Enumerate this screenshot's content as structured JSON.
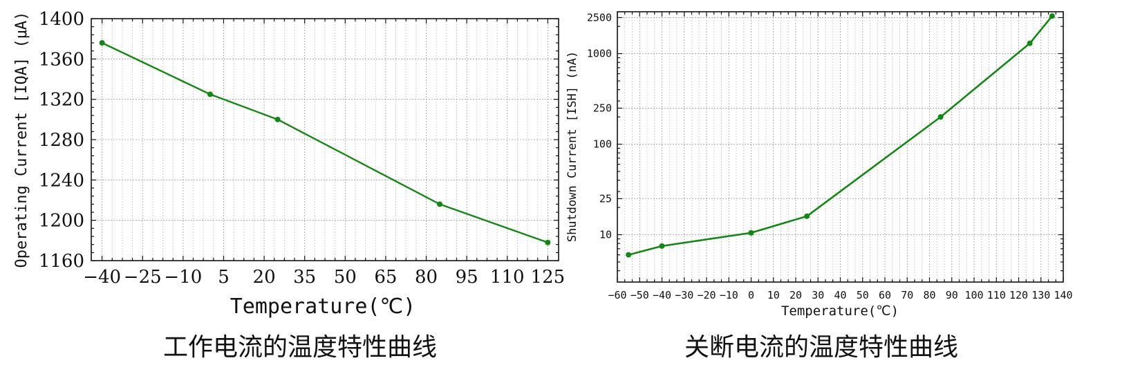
{
  "chart_data": [
    {
      "type": "line",
      "caption": "工作电流的温度特性曲线",
      "xlabel": "Temperature(℃)",
      "ylabel": "Operating Current [IQA] (μA)",
      "xlim": [
        -44,
        129
      ],
      "ylim": [
        1160,
        1400
      ],
      "x_ticks": [
        -40,
        -25,
        -10,
        5,
        20,
        35,
        50,
        65,
        80,
        95,
        110,
        125
      ],
      "y_ticks": [
        1160,
        1200,
        1240,
        1280,
        1320,
        1360,
        1400
      ],
      "grid": true,
      "color": "#118811",
      "series": [
        {
          "x": [
            -40,
            0,
            25,
            85,
            125
          ],
          "y": [
            1376,
            1325,
            1300,
            1216,
            1178
          ]
        }
      ]
    },
    {
      "type": "line",
      "caption": "关断电流的温度特性曲线",
      "xlabel": "Temperature(℃)",
      "ylabel": "Shutdown Current [ISH] (nA)",
      "y_scale": "log",
      "xlim": [
        -60,
        140
      ],
      "ylim": [
        3,
        2900
      ],
      "x_ticks": [
        -60,
        -50,
        -40,
        -30,
        -20,
        -10,
        0,
        10,
        20,
        30,
        40,
        50,
        60,
        70,
        80,
        90,
        100,
        110,
        120,
        130,
        140
      ],
      "y_ticks": [
        10,
        25,
        100,
        250,
        1000,
        2500
      ],
      "grid": true,
      "color": "#118811",
      "series": [
        {
          "x": [
            -55,
            -40,
            0,
            25,
            85,
            125,
            135
          ],
          "y": [
            6,
            7.5,
            10.5,
            16,
            200,
            1300,
            2600
          ]
        }
      ]
    }
  ]
}
